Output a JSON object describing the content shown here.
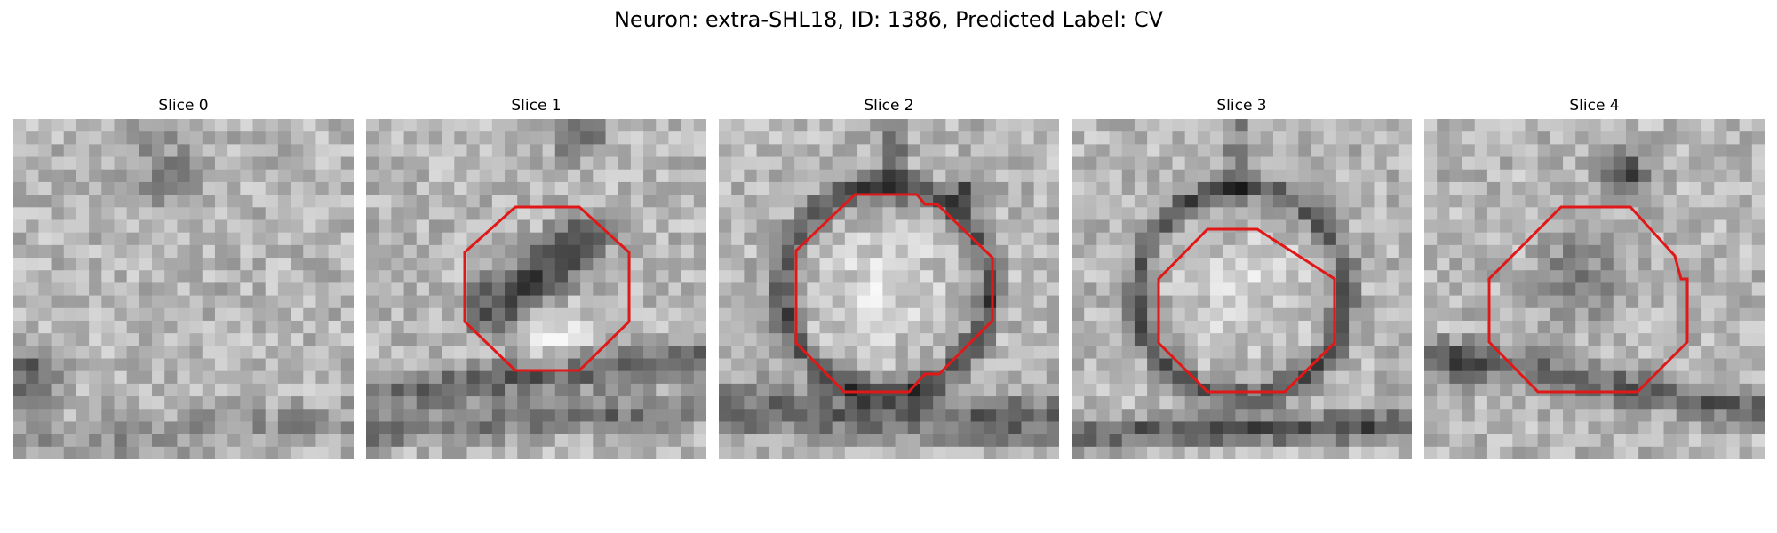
{
  "figure": {
    "title": "Neuron: extra-SHL18, ID: 1386, Predicted Label: CV"
  },
  "colors": {
    "background": "#ffffff",
    "roi_outline": "#e01818",
    "image_colormap": "grayscale"
  },
  "slices": [
    {
      "label": "Slice 0",
      "roi_outline": false
    },
    {
      "label": "Slice 1",
      "roi_outline": true
    },
    {
      "label": "Slice 2",
      "roi_outline": true
    },
    {
      "label": "Slice 3",
      "roi_outline": true
    },
    {
      "label": "Slice 4",
      "roi_outline": true
    }
  ]
}
